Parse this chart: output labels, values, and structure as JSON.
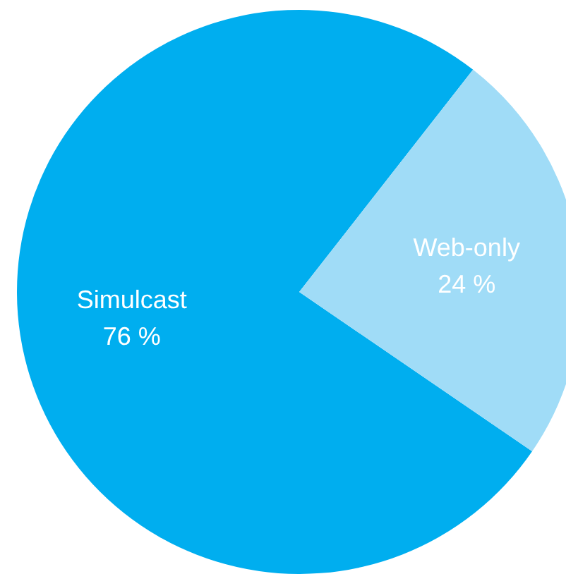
{
  "chart_data": {
    "type": "pie",
    "categories": [
      "Simulcast",
      "Web-only"
    ],
    "values": [
      76,
      24
    ],
    "value_labels": [
      "76 %",
      "24 %"
    ],
    "colors": [
      "#00aeef",
      "#a0dcf7"
    ],
    "legend": false
  }
}
